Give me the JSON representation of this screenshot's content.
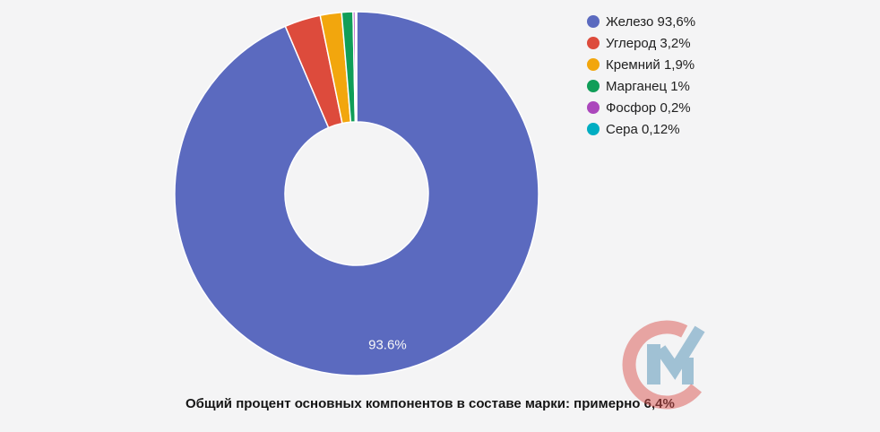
{
  "background": "#f4f4f5",
  "chart_data": {
    "type": "pie",
    "subtype": "donut",
    "pie_hole_ratio": 0.4,
    "start_angle_deg": -90,
    "direction": "clockwise",
    "grid": false,
    "legend_position": "right-top",
    "slice_border_color": "#ffffff",
    "slice_label_color": "#f7f7f7",
    "slices": [
      {
        "name": "Железо",
        "value": 93.6,
        "color": "#5b6abf",
        "legend_text": "Железо 93,6%",
        "slice_label": "93.6%"
      },
      {
        "name": "Углерод",
        "value": 3.2,
        "color": "#dd4b3c",
        "legend_text": "Углерод 3,2%",
        "slice_label": ""
      },
      {
        "name": "Кремний",
        "value": 1.9,
        "color": "#f2a60d",
        "legend_text": "Кремний 1,9%",
        "slice_label": ""
      },
      {
        "name": "Марганец",
        "value": 1,
        "color": "#109e58",
        "legend_text": "Марганец 1%",
        "slice_label": ""
      },
      {
        "name": "Фосфор",
        "value": 0.2,
        "color": "#ab47bc",
        "legend_text": "Фосфор 0,2%",
        "slice_label": ""
      },
      {
        "name": "Сера",
        "value": 0.12,
        "color": "#00adc2",
        "legend_text": "Сера 0,12%",
        "slice_label": ""
      }
    ]
  },
  "caption": {
    "text": "Общий процент основных компонентов в составе марки: примерно 6,4%"
  },
  "logo": {
    "name": "CM watermark",
    "c_color": "#d9534f",
    "m_color": "#5d98ba"
  }
}
